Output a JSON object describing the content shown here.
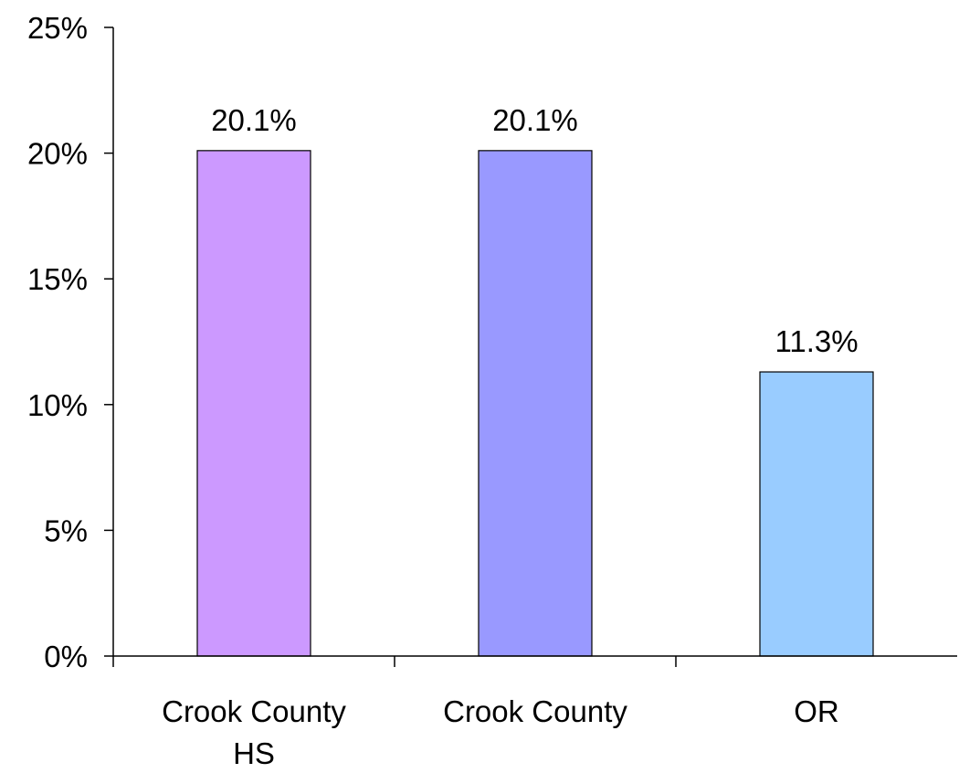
{
  "chart_data": {
    "type": "bar",
    "categories": [
      "Crook County HS",
      "Crook County",
      "OR"
    ],
    "category_lines": [
      [
        "Crook County",
        "HS"
      ],
      [
        "Crook County"
      ],
      [
        "OR"
      ]
    ],
    "values": [
      20.1,
      20.1,
      11.3
    ],
    "data_labels": [
      "20.1%",
      "20.1%",
      "11.3%"
    ],
    "bar_colors": [
      "#CC99FF",
      "#9999FF",
      "#99CCFF"
    ],
    "ylim": [
      0,
      25
    ],
    "yticks": [
      0,
      5,
      10,
      15,
      20,
      25
    ],
    "ytick_labels": [
      "0%",
      "5%",
      "10%",
      "15%",
      "20%",
      "25%"
    ],
    "grid": false,
    "legend": "none"
  }
}
